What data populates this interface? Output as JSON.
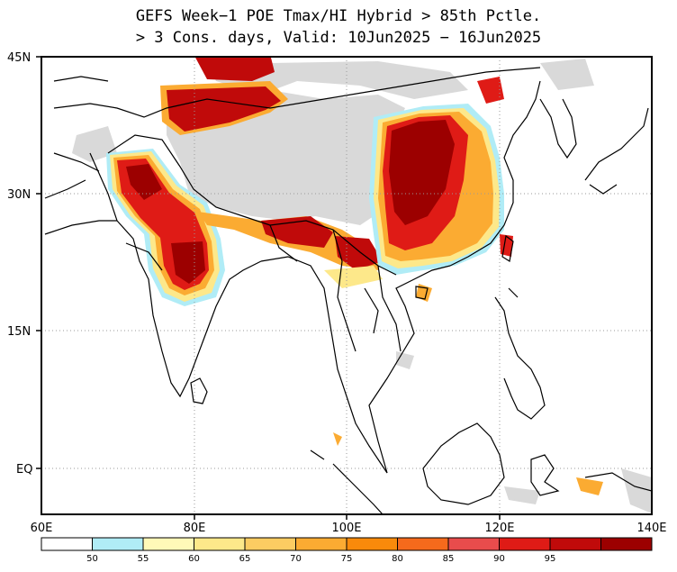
{
  "title": {
    "line1": "GEFS Week−1 POE Tmax/HI Hybrid > 85th Pctle.",
    "line2": "> 3 Cons. days, Valid: 10Jun2025 − 16Jun2025"
  },
  "map": {
    "lon_range": [
      60,
      140
    ],
    "lat_range": [
      -6,
      45
    ],
    "lat_labels": [
      "45N",
      "30N",
      "15N",
      "EQ"
    ],
    "lon_labels": [
      "60E",
      "80E",
      "100E",
      "120E",
      "140E"
    ],
    "colors": {
      "land_gray": "#d9d9d9",
      "p50": "#b0ecf6",
      "p55": "#fff9b8",
      "p60": "#fde88a",
      "p65": "#fccc62",
      "p70": "#fbab32",
      "p75": "#f98a0b",
      "p80": "#f56a1c",
      "p85": "#e84c4c",
      "p90": "#df1b16",
      "p95": "#c00a0a",
      "p99": "#9c0000"
    }
  },
  "colorbar": {
    "ticks": [
      "50",
      "55",
      "60",
      "65",
      "70",
      "75",
      "80",
      "85",
      "90",
      "95"
    ],
    "colors": [
      "#ffffff",
      "#b0ecf6",
      "#fff9b8",
      "#fde88a",
      "#fccc62",
      "#fbab32",
      "#f98a0b",
      "#f56a1c",
      "#e84c4c",
      "#df1b16",
      "#c00a0a",
      "#9c0000"
    ]
  }
}
